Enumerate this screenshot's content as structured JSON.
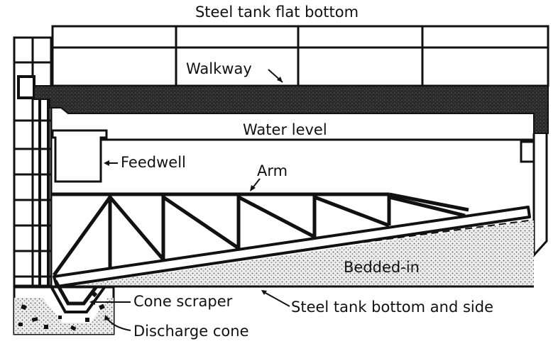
{
  "title": "Steel tank flat bottom",
  "labels": {
    "walkway": "Walkway",
    "water_level": "Water level",
    "feedwell": "Feedwell",
    "arm": "Arm",
    "bedded_in": "Bedded-in",
    "cone_scraper": "Cone scraper",
    "tank_bottom": "Steel tank bottom and side",
    "discharge_cone": "Discharge cone"
  },
  "colors": {
    "ink": "#111111",
    "fill_dark": "#2a2a2a",
    "paper": "#ffffff",
    "sediment": "#e6e6e6"
  }
}
